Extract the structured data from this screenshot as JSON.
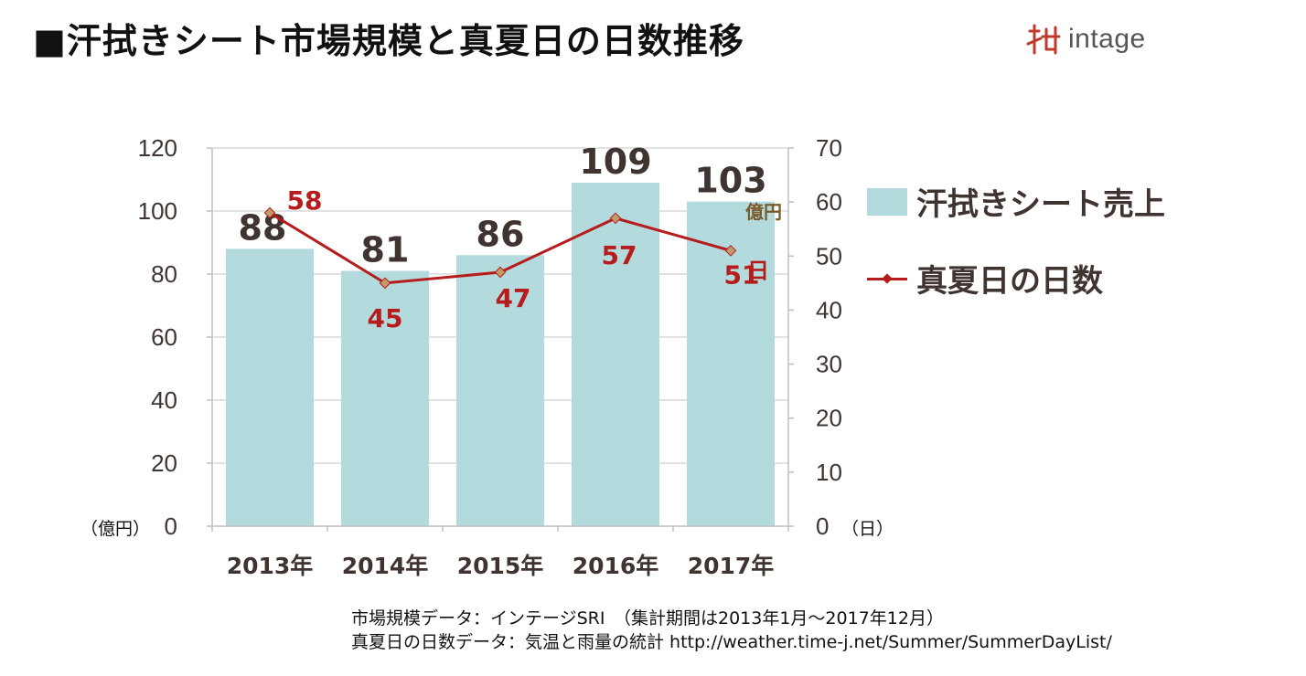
{
  "header": {
    "title": "■汗拭きシート市場規模と真夏日の日数推移",
    "logo_text": "intage"
  },
  "chart_data": {
    "type": "bar+line",
    "categories": [
      "2013年",
      "2014年",
      "2015年",
      "2016年",
      "2017年"
    ],
    "series": [
      {
        "name": "汗拭きシート売上",
        "type": "bar",
        "axis": "left",
        "unit": "億円",
        "values": [
          88,
          81,
          86,
          109,
          103
        ],
        "labels": [
          "88",
          "81",
          "86",
          "109",
          "103"
        ],
        "color": "#b3dbde"
      },
      {
        "name": "真夏日の日数",
        "type": "line",
        "axis": "right",
        "unit": "日",
        "values": [
          58,
          45,
          47,
          57,
          51
        ],
        "labels": [
          "58",
          "45",
          "47",
          "57",
          "51"
        ],
        "color": "#b71c1c"
      }
    ],
    "left_axis": {
      "min": 0,
      "max": 120,
      "step": 20,
      "unit_label": "（億円）",
      "ticks": [
        "0",
        "20",
        "40",
        "60",
        "80",
        "100",
        "120"
      ]
    },
    "right_axis": {
      "min": 0,
      "max": 70,
      "step": 10,
      "unit_label": "（日）",
      "ticks": [
        "0",
        "10",
        "20",
        "30",
        "40",
        "50",
        "60",
        "70"
      ]
    },
    "bar_unit_annotation": "億円",
    "line_unit_annotation": "日",
    "grid": true,
    "legend_position": "right"
  },
  "legend": {
    "bar_label": "汗拭きシート売上",
    "line_label": "真夏日の日数"
  },
  "source": {
    "line1": "市場規模データ：インテージSRI　（集計期間は2013年1月～2017年12月）",
    "line2": "真夏日の日数データ：気温と雨量の統計  http://weather.time-j.net/Summer/SummerDayList/"
  }
}
